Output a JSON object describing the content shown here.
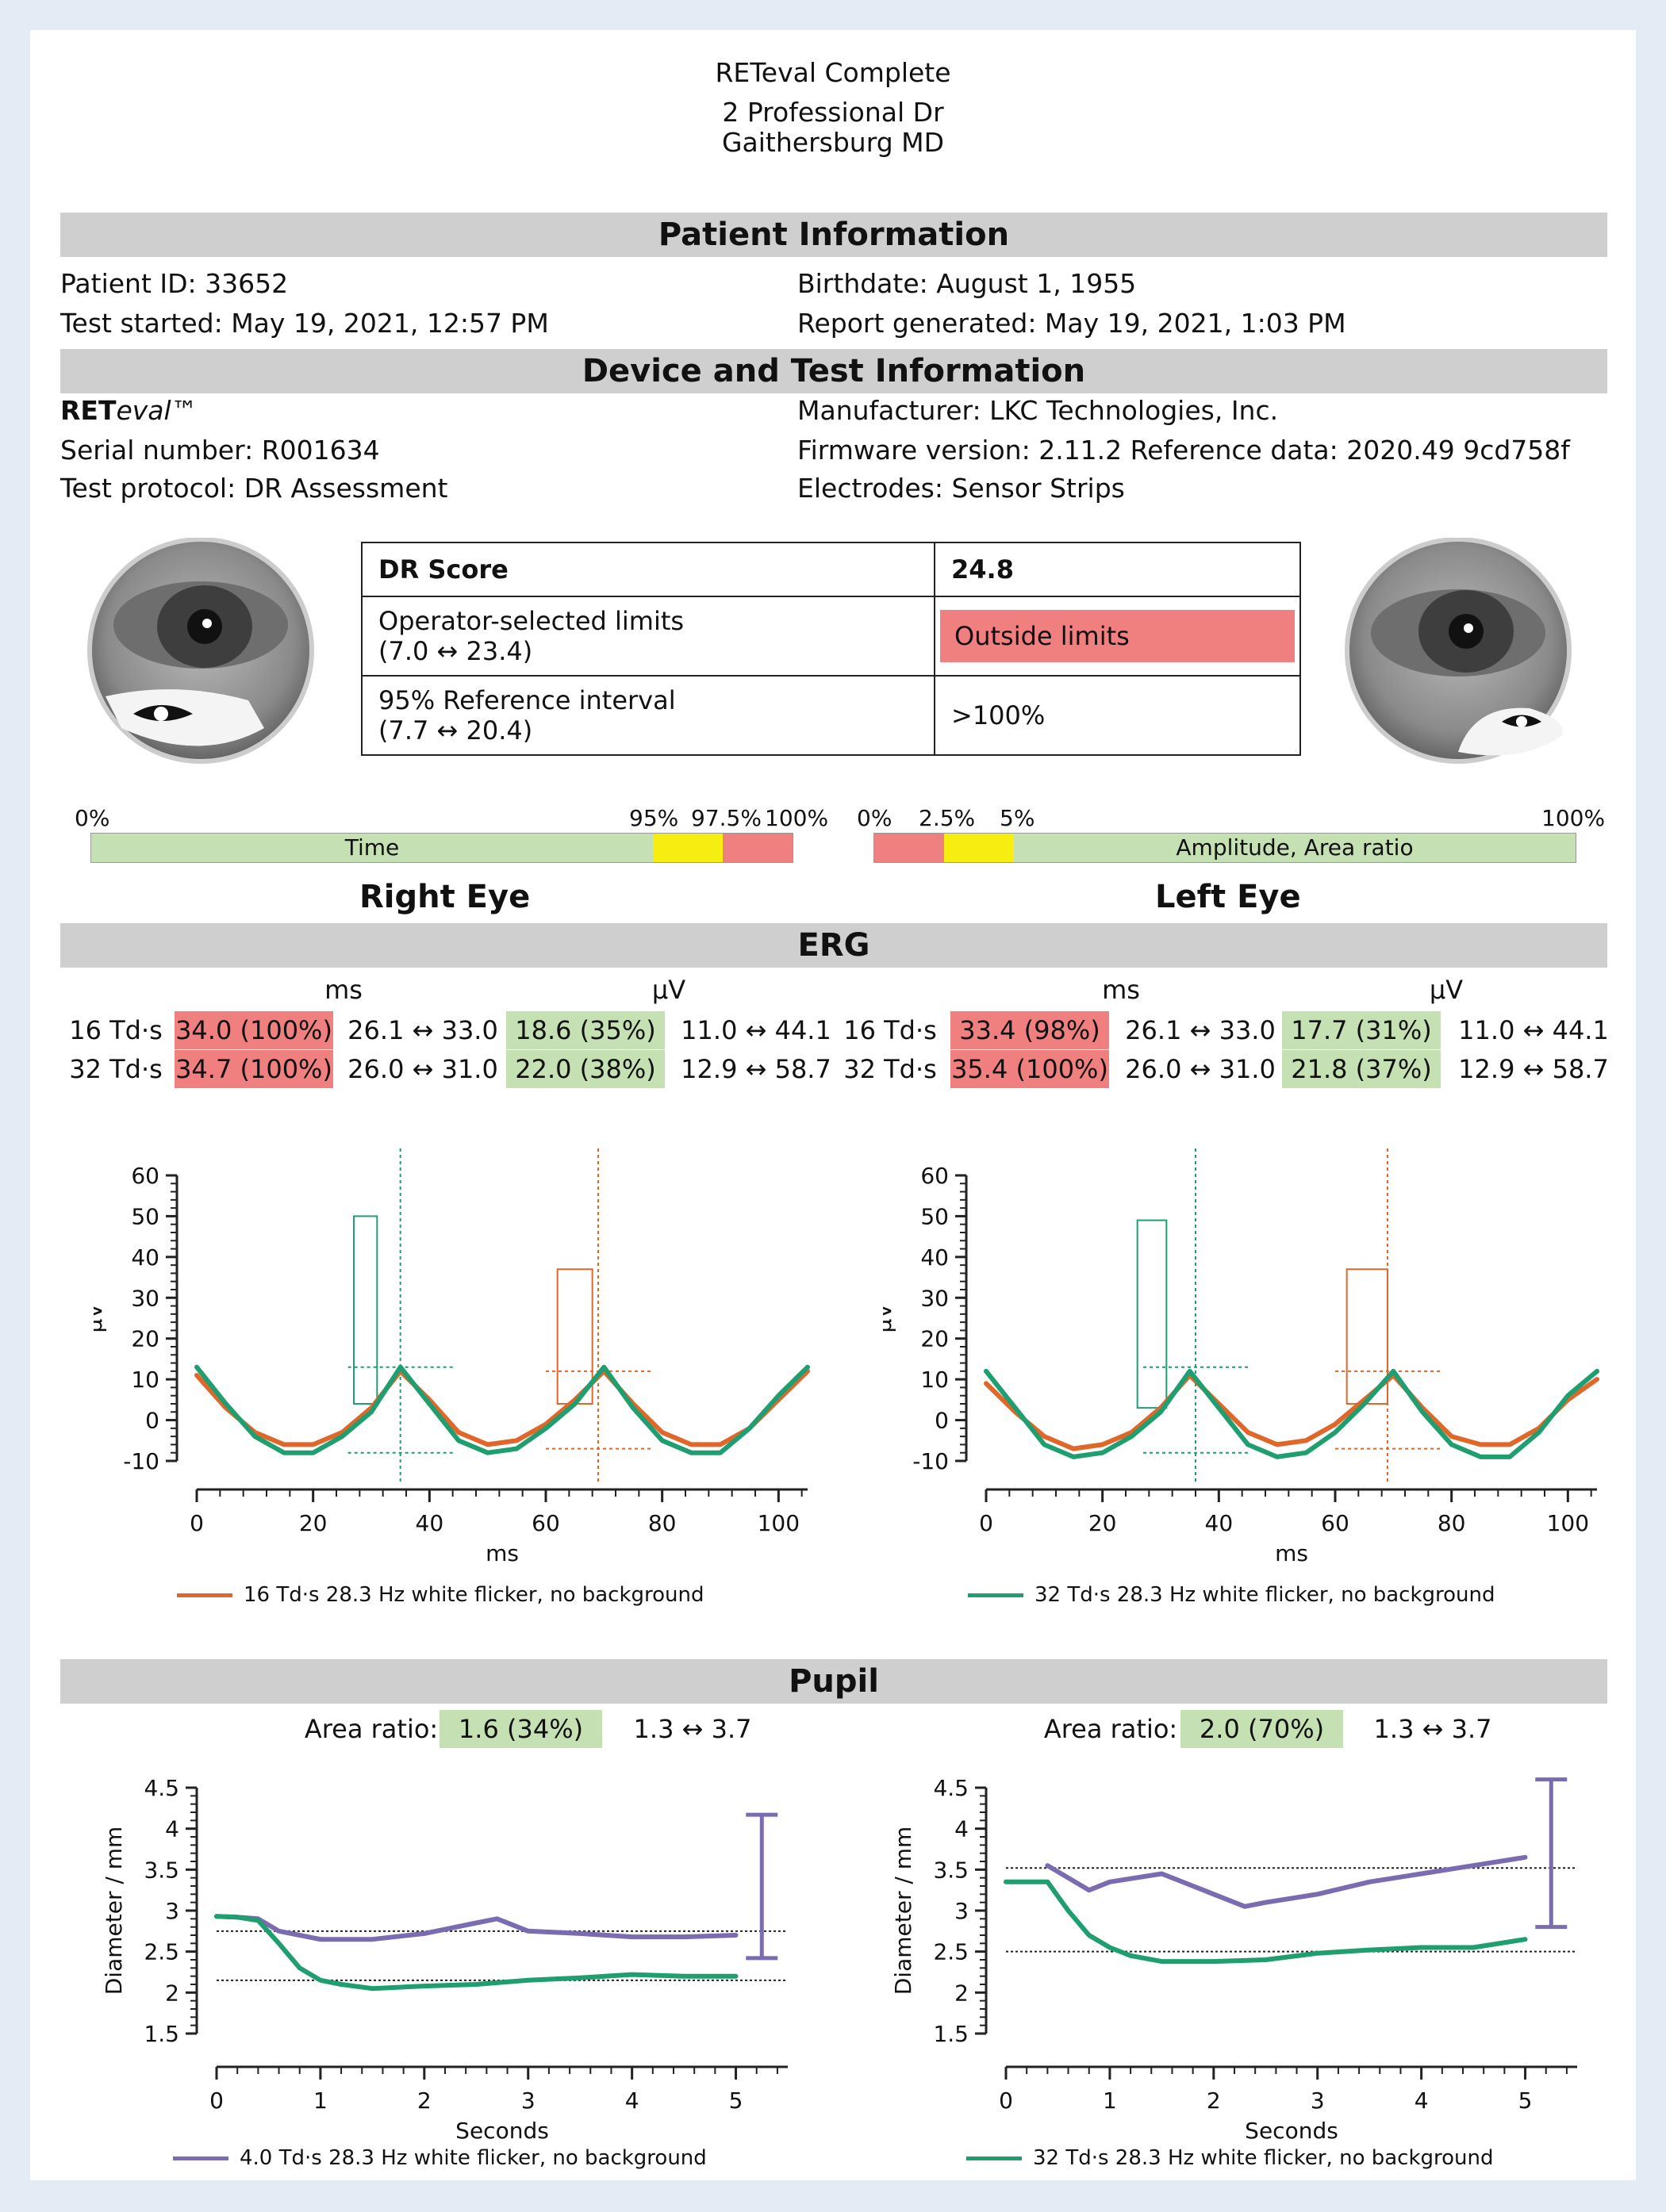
{
  "header": {
    "title": "RETeval Complete",
    "address_line1": "2 Professional Dr",
    "address_line2": "Gaithersburg MD"
  },
  "patient": {
    "section_title": "Patient Information",
    "id": "Patient ID: 33652",
    "birthdate": "Birthdate: August 1, 1955",
    "test_started": "Test started: May 19, 2021, 12:57 PM",
    "report_generated": "Report generated: May 19, 2021, 1:03 PM"
  },
  "device": {
    "section_title": "Device and Test Information",
    "brand_bold": "RET",
    "brand_italic": "eval",
    "brand_tm": "™",
    "manufacturer": "Manufacturer: LKC Technologies, Inc.",
    "serial": "Serial number: R001634",
    "firmware": "Firmware version: 2.11.2 Reference data: 2020.49 9cd758f",
    "protocol": "Test protocol: DR Assessment",
    "electrodes": "Electrodes: Sensor Strips"
  },
  "dr_table": {
    "score_label": "DR Score",
    "score_value": "24.8",
    "limits_label_1": "Operator-selected limits",
    "limits_label_2": "(7.0 ↔ 23.4)",
    "limits_value": "Outside limits",
    "ref_label_1": "95% Reference interval",
    "ref_label_2": "(7.7 ↔ 20.4)",
    "ref_value": ">100%"
  },
  "scales": {
    "time": {
      "label": "Time",
      "ticks": [
        "0%",
        "95%",
        "97.5%",
        "100%"
      ],
      "segments": [
        0.0,
        0.95,
        0.975,
        1.0
      ]
    },
    "amplitude": {
      "label": "Amplitude, Area ratio",
      "ticks": [
        "0%",
        "2.5%",
        "5%",
        "100%"
      ]
    },
    "colors": {
      "green": "#c5e0b3",
      "yellow": "#f5ee10",
      "red": "#f08080"
    }
  },
  "eyes": {
    "right": "Right Eye",
    "left": "Left Eye"
  },
  "erg": {
    "section_title": "ERG",
    "unit_ms": "ms",
    "unit_uv": "µV",
    "right": [
      {
        "label": "16 Td·s",
        "ms": "34.0 (100%)",
        "ms_range": "26.1 ↔ 33.0",
        "uv": "18.6 (35%)",
        "uv_range": "11.0 ↔ 44.1"
      },
      {
        "label": "32 Td·s",
        "ms": "34.7 (100%)",
        "ms_range": "26.0 ↔ 31.0",
        "uv": "22.0 (38%)",
        "uv_range": "12.9 ↔ 58.7"
      }
    ],
    "left": [
      {
        "label": "16 Td·s",
        "ms": "33.4 (98%)",
        "ms_range": "26.1 ↔ 33.0",
        "uv": "17.7 (31%)",
        "uv_range": "11.0 ↔ 44.1"
      },
      {
        "label": "32 Td·s",
        "ms": "35.4 (100%)",
        "ms_range": "26.0 ↔ 31.0",
        "uv": "21.8 (37%)",
        "uv_range": "12.9 ↔ 58.7"
      }
    ],
    "legend_right": "16 Td·s 28.3 Hz white flicker, no background",
    "legend_left": "32 Td·s 28.3 Hz white flicker, no background"
  },
  "pupil": {
    "section_title": "Pupil",
    "area_label": "Area ratio:",
    "right_value": "1.6 (34%)",
    "right_range": "1.3 ↔ 3.7",
    "left_value": "2.0 (70%)",
    "left_range": "1.3 ↔ 3.7",
    "legend_right": "4.0 Td·s 28.3 Hz white flicker, no background",
    "legend_left": "32 Td·s 28.3 Hz white flicker, no background"
  },
  "chart_data": [
    {
      "type": "line",
      "title": "Right Eye ERG",
      "xlabel": "ms",
      "ylabel": "µV",
      "xlim": [
        0,
        105
      ],
      "ylim": [
        -10,
        60
      ],
      "xticks": [
        0,
        20,
        40,
        60,
        80,
        100
      ],
      "yticks": [
        -10,
        0,
        10,
        20,
        30,
        40,
        50,
        60
      ],
      "series": [
        {
          "name": "16 Td·s",
          "color": "#e0662a",
          "x": [
            0,
            5,
            10,
            15,
            20,
            25,
            30,
            35,
            40,
            45,
            50,
            55,
            60,
            65,
            70,
            75,
            80,
            85,
            90,
            95,
            100,
            105
          ],
          "y": [
            11,
            3,
            -3,
            -6,
            -6,
            -3,
            3,
            12,
            5,
            -3,
            -6,
            -5,
            -1,
            5,
            12,
            4,
            -3,
            -6,
            -6,
            -2,
            5,
            12
          ]
        },
        {
          "name": "32 Td·s",
          "color": "#1f9e70",
          "x": [
            0,
            5,
            10,
            15,
            20,
            25,
            30,
            35,
            40,
            45,
            50,
            55,
            60,
            65,
            70,
            75,
            80,
            85,
            90,
            95,
            100,
            105
          ],
          "y": [
            13,
            4,
            -4,
            -8,
            -8,
            -4,
            2,
            13,
            4,
            -5,
            -8,
            -7,
            -2,
            4,
            13,
            3,
            -5,
            -8,
            -8,
            -2,
            6,
            13
          ]
        }
      ],
      "markers": {
        "green_box": [
          27,
          4,
          31,
          50
        ],
        "green_vline": 35,
        "orange_box": [
          62,
          4,
          68,
          37
        ],
        "orange_vline": 69
      }
    },
    {
      "type": "line",
      "title": "Left Eye ERG",
      "xlabel": "ms",
      "ylabel": "µV",
      "xlim": [
        0,
        105
      ],
      "ylim": [
        -10,
        60
      ],
      "xticks": [
        0,
        20,
        40,
        60,
        80,
        100
      ],
      "yticks": [
        -10,
        0,
        10,
        20,
        30,
        40,
        50,
        60
      ],
      "series": [
        {
          "name": "16 Td·s",
          "color": "#e0662a",
          "x": [
            0,
            5,
            10,
            15,
            20,
            25,
            30,
            35,
            40,
            45,
            50,
            55,
            60,
            65,
            70,
            75,
            80,
            85,
            90,
            95,
            100,
            105
          ],
          "y": [
            9,
            2,
            -4,
            -7,
            -6,
            -3,
            3,
            11,
            4,
            -3,
            -6,
            -5,
            -1,
            5,
            11,
            3,
            -4,
            -6,
            -6,
            -2,
            5,
            10
          ]
        },
        {
          "name": "32 Td·s",
          "color": "#1f9e70",
          "x": [
            0,
            5,
            10,
            15,
            20,
            25,
            30,
            35,
            40,
            45,
            50,
            55,
            60,
            65,
            70,
            75,
            80,
            85,
            90,
            95,
            100,
            105
          ],
          "y": [
            12,
            3,
            -6,
            -9,
            -8,
            -4,
            2,
            12,
            3,
            -6,
            -9,
            -8,
            -3,
            4,
            12,
            2,
            -6,
            -9,
            -9,
            -3,
            6,
            12
          ]
        }
      ],
      "markers": {
        "green_box": [
          26,
          3,
          31,
          49
        ],
        "green_vline": 36,
        "orange_box": [
          62,
          4,
          69,
          37
        ],
        "orange_vline": 69
      }
    },
    {
      "type": "line",
      "title": "Right Eye Pupil",
      "xlabel": "Seconds",
      "ylabel": "Diameter / mm",
      "xlim": [
        0,
        5.5
      ],
      "ylim": [
        1.5,
        4.5
      ],
      "xticks": [
        0,
        1,
        2,
        3,
        4,
        5
      ],
      "yticks": [
        1.5,
        2,
        2.5,
        3,
        3.5,
        4,
        4.5
      ],
      "series": [
        {
          "name": "4.0 Td·s",
          "color": "#7b6bb0",
          "x": [
            0,
            0.2,
            0.4,
            0.6,
            0.8,
            1.0,
            1.5,
            2.0,
            2.5,
            2.7,
            3.0,
            3.5,
            4.0,
            4.5,
            5.0
          ],
          "y": [
            2.93,
            2.92,
            2.9,
            2.75,
            2.7,
            2.65,
            2.65,
            2.72,
            2.85,
            2.9,
            2.75,
            2.72,
            2.68,
            2.68,
            2.7
          ]
        },
        {
          "name": "32 Td·s",
          "color": "#1f9e70",
          "x": [
            0,
            0.2,
            0.4,
            0.6,
            0.8,
            1.0,
            1.2,
            1.5,
            2.0,
            2.5,
            3.0,
            3.5,
            4.0,
            4.5,
            5.0
          ],
          "y": [
            2.93,
            2.92,
            2.88,
            2.6,
            2.3,
            2.15,
            2.1,
            2.05,
            2.08,
            2.1,
            2.15,
            2.18,
            2.22,
            2.2,
            2.2
          ]
        }
      ],
      "ref_lines": [
        2.75,
        2.15
      ],
      "range_bar": [
        2.42,
        4.17
      ]
    },
    {
      "type": "line",
      "title": "Left Eye Pupil",
      "xlabel": "Seconds",
      "ylabel": "Diameter / mm",
      "xlim": [
        0,
        5.5
      ],
      "ylim": [
        1.5,
        4.5
      ],
      "xticks": [
        0,
        1,
        2,
        3,
        4,
        5
      ],
      "yticks": [
        1.5,
        2,
        2.5,
        3,
        3.5,
        4,
        4.5
      ],
      "series": [
        {
          "name": "4.0 Td·s",
          "color": "#7b6bb0",
          "x": [
            0.4,
            0.6,
            0.8,
            1.0,
            1.5,
            2.0,
            2.3,
            2.5,
            3.0,
            3.5,
            4.0,
            4.5,
            5.0
          ],
          "y": [
            3.55,
            3.4,
            3.25,
            3.35,
            3.45,
            3.2,
            3.05,
            3.1,
            3.2,
            3.35,
            3.45,
            3.55,
            3.65
          ]
        },
        {
          "name": "32 Td·s",
          "color": "#1f9e70",
          "x": [
            0,
            0.4,
            0.6,
            0.8,
            1.0,
            1.2,
            1.5,
            2.0,
            2.5,
            3.0,
            3.5,
            4.0,
            4.5,
            5.0
          ],
          "y": [
            3.35,
            3.35,
            3.0,
            2.7,
            2.55,
            2.45,
            2.38,
            2.38,
            2.4,
            2.48,
            2.52,
            2.55,
            2.55,
            2.65
          ]
        }
      ],
      "ref_lines": [
        3.52,
        2.5
      ],
      "range_bar": [
        2.8,
        4.6
      ]
    }
  ]
}
